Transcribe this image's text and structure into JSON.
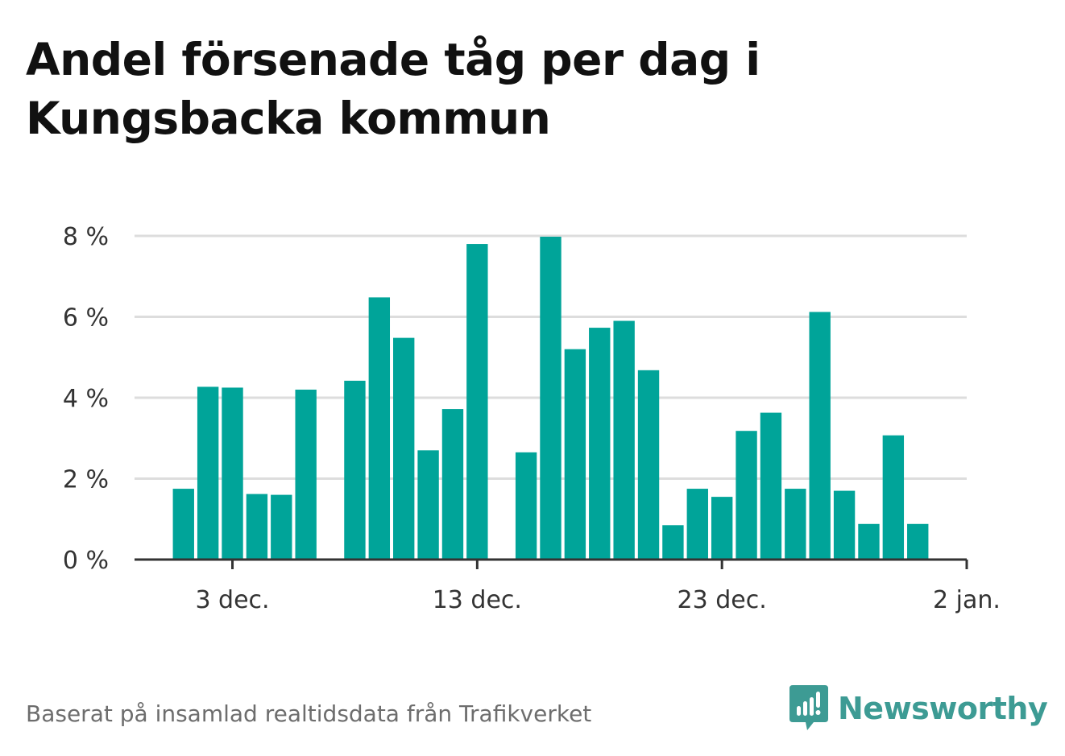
{
  "title_lines": [
    "Andel försenade tåg per dag i",
    "Kungsbacka kommun"
  ],
  "footer": "Baserat på insamlad realtidsdata från Trafikverket",
  "brand": {
    "name": "Newsworthy",
    "icon": "newsworthy-logo-icon"
  },
  "colors": {
    "bar": "#00a499",
    "grid": "#dddddd",
    "axis": "#333333",
    "brand": "#3d9b94"
  },
  "chart_data": {
    "type": "bar",
    "title": "Andel försenade tåg per dag i Kungsbacka kommun",
    "xlabel": "",
    "ylabel": "",
    "x_ticks": [
      {
        "date": "2020-12-03",
        "label": "3 dec."
      },
      {
        "date": "2020-12-13",
        "label": "13 dec."
      },
      {
        "date": "2020-12-23",
        "label": "23 dec."
      },
      {
        "date": "2021-01-02",
        "label": "2 jan."
      }
    ],
    "y_ticks": [
      {
        "value": 0,
        "label": "0 %"
      },
      {
        "value": 2,
        "label": "2 %"
      },
      {
        "value": 4,
        "label": "4 %"
      },
      {
        "value": 6,
        "label": "6 %"
      },
      {
        "value": 8,
        "label": "8 %"
      }
    ],
    "ylim": [
      0,
      8
    ],
    "xlim": [
      "2020-11-29",
      "2021-01-02"
    ],
    "grid": true,
    "unit": "%",
    "data": [
      {
        "date": "2020-12-01",
        "value": 1.75
      },
      {
        "date": "2020-12-02",
        "value": 4.27
      },
      {
        "date": "2020-12-03",
        "value": 4.25
      },
      {
        "date": "2020-12-04",
        "value": 1.62
      },
      {
        "date": "2020-12-05",
        "value": 1.6
      },
      {
        "date": "2020-12-06",
        "value": 4.2
      },
      {
        "date": "2020-12-07",
        "value": null
      },
      {
        "date": "2020-12-08",
        "value": 4.42
      },
      {
        "date": "2020-12-09",
        "value": 6.48
      },
      {
        "date": "2020-12-10",
        "value": 5.48
      },
      {
        "date": "2020-12-11",
        "value": 2.7
      },
      {
        "date": "2020-12-12",
        "value": 3.72
      },
      {
        "date": "2020-12-13",
        "value": 7.8
      },
      {
        "date": "2020-12-14",
        "value": null
      },
      {
        "date": "2020-12-15",
        "value": 2.65
      },
      {
        "date": "2020-12-16",
        "value": 7.98
      },
      {
        "date": "2020-12-17",
        "value": 5.2
      },
      {
        "date": "2020-12-18",
        "value": 5.73
      },
      {
        "date": "2020-12-19",
        "value": 5.9
      },
      {
        "date": "2020-12-20",
        "value": 4.68
      },
      {
        "date": "2020-12-21",
        "value": 0.85
      },
      {
        "date": "2020-12-22",
        "value": 1.75
      },
      {
        "date": "2020-12-23",
        "value": 1.55
      },
      {
        "date": "2020-12-24",
        "value": 3.18
      },
      {
        "date": "2020-12-25",
        "value": 3.63
      },
      {
        "date": "2020-12-26",
        "value": 1.75
      },
      {
        "date": "2020-12-27",
        "value": 6.12
      },
      {
        "date": "2020-12-28",
        "value": 1.7
      },
      {
        "date": "2020-12-29",
        "value": 0.88
      },
      {
        "date": "2020-12-30",
        "value": 3.07
      },
      {
        "date": "2020-12-31",
        "value": 0.88
      }
    ]
  }
}
